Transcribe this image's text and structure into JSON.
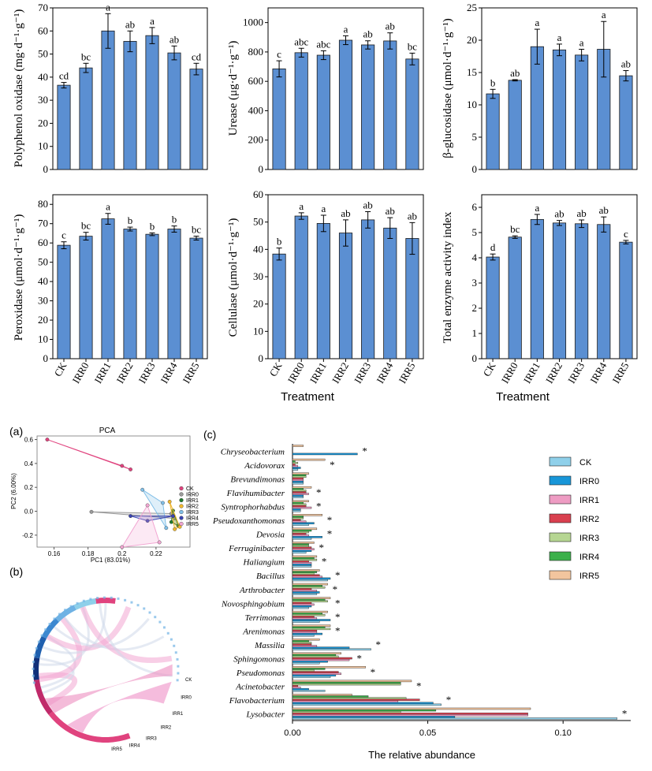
{
  "colors": {
    "bar_fill": "#5b8fd2",
    "pca_groups": [
      "#e0437e",
      "#9a9a9a",
      "#1f7a2e",
      "#f0b72d",
      "#80bfe8",
      "#3a44b0",
      "#f2a6d2"
    ],
    "abundance_series": [
      "#8fd0ea",
      "#1896d8",
      "#ee9cc3",
      "#d9404f",
      "#b6d692",
      "#3bb04a",
      "#f2c59e"
    ]
  },
  "chart_data": [
    {
      "type": "bar",
      "panel": "top-1",
      "categories": [
        "CK",
        "IRR0",
        "IRR1",
        "IRR2",
        "IRR3",
        "IRR4",
        "IRR5"
      ],
      "values": [
        36.5,
        44,
        60,
        55.5,
        58,
        50.5,
        43.5
      ],
      "errors": [
        1.2,
        2,
        7.5,
        4.5,
        3.5,
        3,
        2.5
      ],
      "letters": [
        "cd",
        "bc",
        "a",
        "ab",
        "a",
        "ab",
        "cd"
      ],
      "ylabel": "Polyphenol oxidase (mg·d⁻¹·g⁻¹)",
      "ylim": [
        0,
        70
      ],
      "yticks": [
        0,
        10,
        20,
        30,
        40,
        50,
        60,
        70
      ]
    },
    {
      "type": "bar",
      "panel": "top-2",
      "categories": [
        "CK",
        "IRR0",
        "IRR1",
        "IRR2",
        "IRR3",
        "IRR4",
        "IRR5"
      ],
      "values": [
        685,
        795,
        778,
        880,
        848,
        875,
        752
      ],
      "errors": [
        55,
        30,
        30,
        30,
        28,
        55,
        40
      ],
      "letters": [
        "c",
        "abc",
        "abc",
        "a",
        "ab",
        "ab",
        "bc"
      ],
      "ylabel": "Urease (μg·d⁻¹·g⁻¹)",
      "ylim": [
        0,
        1100
      ],
      "yticks": [
        0,
        200,
        400,
        600,
        800,
        1000
      ]
    },
    {
      "type": "bar",
      "panel": "top-3",
      "categories": [
        "CK",
        "IRR0",
        "IRR1",
        "IRR2",
        "IRR3",
        "IRR4",
        "IRR5"
      ],
      "values": [
        11.7,
        13.8,
        19,
        18.5,
        17.7,
        18.6,
        14.5
      ],
      "errors": [
        0.7,
        0.1,
        2.7,
        0.9,
        0.9,
        4.3,
        0.8
      ],
      "letters": [
        "b",
        "ab",
        "a",
        "a",
        "a",
        "a",
        "ab"
      ],
      "ylabel": "β-glucosidase (μmol·d⁻¹·g⁻¹)",
      "ylim": [
        0,
        25
      ],
      "yticks": [
        0,
        5,
        10,
        15,
        20,
        25
      ]
    },
    {
      "type": "bar",
      "panel": "mid-1",
      "categories": [
        "CK",
        "IRR0",
        "IRR1",
        "IRR2",
        "IRR3",
        "IRR4",
        "IRR5"
      ],
      "values": [
        58.8,
        63.5,
        72.5,
        67.2,
        64.5,
        67.2,
        62.5
      ],
      "errors": [
        1.8,
        2,
        2.8,
        1,
        0.7,
        1.6,
        1
      ],
      "letters": [
        "c",
        "bc",
        "a",
        "b",
        "b",
        "b",
        "bc"
      ],
      "ylabel": "Peroxidase (μmol·d⁻¹·g⁻¹)",
      "ylim": [
        0,
        85
      ],
      "yticks": [
        0,
        10,
        20,
        30,
        40,
        50,
        60,
        70,
        80
      ]
    },
    {
      "type": "bar",
      "panel": "mid-2",
      "categories": [
        "CK",
        "IRR0",
        "IRR1",
        "IRR2",
        "IRR3",
        "IRR4",
        "IRR5"
      ],
      "values": [
        38.3,
        52.2,
        49.5,
        46,
        50.8,
        47.8,
        44
      ],
      "errors": [
        2.2,
        1.2,
        3,
        4.8,
        3,
        3.8,
        5.8
      ],
      "letters": [
        "b",
        "a",
        "a",
        "ab",
        "ab",
        "ab",
        "ab"
      ],
      "ylabel": "Cellulase (μmol·d⁻¹·g⁻¹)",
      "ylim": [
        0,
        60
      ],
      "yticks": [
        0,
        10,
        20,
        30,
        40,
        50,
        60
      ],
      "xlabel": "Treatment"
    },
    {
      "type": "bar",
      "panel": "mid-3",
      "categories": [
        "CK",
        "IRR0",
        "IRR1",
        "IRR2",
        "IRR3",
        "IRR4",
        "IRR5"
      ],
      "values": [
        4.03,
        4.82,
        5.52,
        5.38,
        5.35,
        5.32,
        4.62
      ],
      "errors": [
        0.12,
        0.05,
        0.2,
        0.1,
        0.15,
        0.3,
        0.07
      ],
      "letters": [
        "d",
        "bc",
        "a",
        "ab",
        "ab",
        "ab",
        "c"
      ],
      "ylabel": "Total enzyme activity index",
      "ylim": [
        0,
        6.5
      ],
      "yticks": [
        0,
        1,
        2,
        3,
        4,
        5,
        6
      ],
      "xlabel": "Treatment"
    },
    {
      "type": "scatter",
      "panel": "(a)",
      "title": "PCA",
      "xlabel": "PC1 (83.01%)",
      "ylabel": "PC2 (6.00%)",
      "xlim": [
        0.15,
        0.24
      ],
      "ylim": [
        -0.3,
        0.63
      ],
      "xticks": [
        0.16,
        0.18,
        0.2,
        0.22
      ],
      "yticks": [
        -0.2,
        0.0,
        0.2,
        0.4,
        0.6
      ],
      "legend": [
        "CK",
        "IRR0",
        "IRR1",
        "IRR2",
        "IRR3",
        "IRR4",
        "IRR5"
      ],
      "groups": [
        {
          "name": "CK",
          "points": [
            [
              0.156,
              0.6
            ],
            [
              0.2,
              0.38
            ],
            [
              0.205,
              0.35
            ]
          ]
        },
        {
          "name": "IRR0",
          "points": [
            [
              0.182,
              -0.005
            ],
            [
              0.231,
              -0.06
            ],
            [
              0.229,
              -0.02
            ]
          ]
        },
        {
          "name": "IRR1",
          "points": [
            [
              0.229,
              -0.09
            ],
            [
              0.23,
              0.005
            ],
            [
              0.233,
              -0.12
            ]
          ]
        },
        {
          "name": "IRR2",
          "points": [
            [
              0.228,
              0.08
            ],
            [
              0.231,
              -0.15
            ],
            [
              0.234,
              -0.13
            ]
          ]
        },
        {
          "name": "IRR3",
          "points": [
            [
              0.212,
              0.18
            ],
            [
              0.226,
              -0.14
            ],
            [
              0.224,
              0.07
            ]
          ]
        },
        {
          "name": "IRR4",
          "points": [
            [
              0.215,
              -0.08
            ],
            [
              0.23,
              -0.04
            ],
            [
              0.205,
              -0.04
            ]
          ]
        },
        {
          "name": "IRR5",
          "points": [
            [
              0.2,
              -0.3
            ],
            [
              0.215,
              0.05
            ],
            [
              0.222,
              -0.26
            ]
          ]
        }
      ]
    },
    {
      "type": "bar",
      "panel": "(c)",
      "orientation": "horizontal",
      "xlabel": "The relative abundance",
      "xlim": [
        0,
        0.125
      ],
      "xticks": [
        0.0,
        0.05,
        0.1
      ],
      "xticklabels": [
        "0.00",
        "0.05",
        "0.10"
      ],
      "legend": [
        "CK",
        "IRR0",
        "IRR1",
        "IRR2",
        "IRR3",
        "IRR4",
        "IRR5"
      ],
      "categories": [
        "Chryseobacterium",
        "Acidovorax",
        "Brevundimonas",
        "Flavihumibacter",
        "Syntrophorhabdus",
        "Pseudoxanthomonas",
        "Devosia",
        "Ferruginibacter",
        "Haliangium",
        "Bacillus",
        "Arthrobacter",
        "Novosphingobium",
        "Terrimonas",
        "Arenimonas",
        "Massilia",
        "Sphingomonas",
        "Pseudomonas",
        "Acinetobacter",
        "Flavobacterium",
        "Lysobacter"
      ],
      "significance": [
        "*",
        "*",
        "",
        "*",
        "*",
        "*",
        "*",
        "*",
        "*",
        "*",
        "*",
        "*",
        "*",
        "*",
        "*",
        "*",
        "*",
        "*",
        "*",
        "*"
      ],
      "series": [
        {
          "name": "CK",
          "values": [
            0.0,
            0.002,
            0.004,
            0.004,
            0.003,
            0.006,
            0.007,
            0.005,
            0.007,
            0.013,
            0.009,
            0.006,
            0.01,
            0.008,
            0.029,
            0.01,
            0.014,
            0.012,
            0.055,
            0.12
          ]
        },
        {
          "name": "IRR0",
          "values": [
            0.024,
            0.003,
            0.004,
            0.004,
            0.003,
            0.008,
            0.011,
            0.007,
            0.007,
            0.014,
            0.01,
            0.007,
            0.014,
            0.011,
            0.021,
            0.013,
            0.016,
            0.006,
            0.052,
            0.06
          ]
        },
        {
          "name": "IRR1",
          "values": [
            0.0,
            0.002,
            0.004,
            0.006,
            0.007,
            0.005,
            0.006,
            0.008,
            0.007,
            0.011,
            0.009,
            0.008,
            0.009,
            0.009,
            0.009,
            0.021,
            0.018,
            0.003,
            0.039,
            0.087
          ]
        },
        {
          "name": "IRR2",
          "values": [
            0.0,
            0.001,
            0.004,
            0.005,
            0.005,
            0.003,
            0.005,
            0.007,
            0.006,
            0.01,
            0.007,
            0.007,
            0.008,
            0.009,
            0.007,
            0.022,
            0.017,
            0.002,
            0.047,
            0.087
          ]
        },
        {
          "name": "IRR3",
          "values": [
            0.0,
            0.002,
            0.005,
            0.005,
            0.005,
            0.004,
            0.006,
            0.006,
            0.009,
            0.008,
            0.012,
            0.013,
            0.012,
            0.014,
            0.007,
            0.017,
            0.008,
            0.04,
            0.042,
            0.04
          ]
        },
        {
          "name": "IRR4",
          "values": [
            0.0,
            0.001,
            0.005,
            0.004,
            0.004,
            0.004,
            0.007,
            0.006,
            0.008,
            0.009,
            0.011,
            0.012,
            0.011,
            0.012,
            0.006,
            0.016,
            0.012,
            0.04,
            0.028,
            0.053
          ]
        },
        {
          "name": "IRR5",
          "values": [
            0.004,
            0.012,
            0.006,
            0.007,
            0.006,
            0.011,
            0.009,
            0.008,
            0.009,
            0.01,
            0.013,
            0.014,
            0.013,
            0.014,
            0.01,
            0.018,
            0.027,
            0.044,
            0.022,
            0.088
          ]
        }
      ]
    }
  ],
  "panel_labels": {
    "a": "(a)",
    "b": "(b)",
    "c": "(c)"
  },
  "chord": {
    "series": [
      "CK",
      "IRR0",
      "IRR1",
      "IRR2",
      "IRR3",
      "IRR4",
      "IRR5"
    ]
  }
}
